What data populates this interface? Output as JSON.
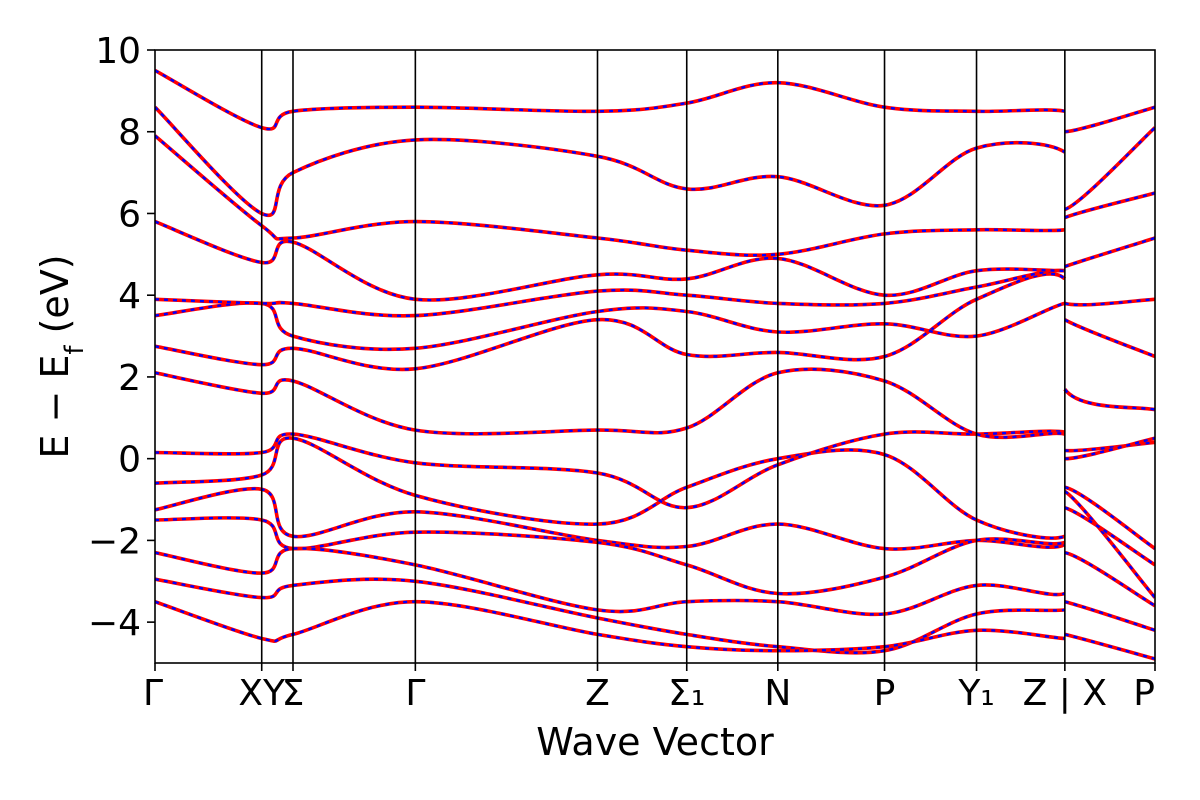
{
  "chart_data": {
    "type": "line",
    "title": "",
    "xlabel": "Wave Vector",
    "ylabel": "E − E",
    "ylabel_sub": "f",
    "ylabel_unit": " (eV)",
    "ylim": [
      -5,
      10
    ],
    "yticks": [
      "−4",
      "−2",
      "0",
      "2",
      "4",
      "6",
      "8",
      "10"
    ],
    "ytick_values": [
      -4,
      -2,
      0,
      2,
      4,
      6,
      8,
      10
    ],
    "kpath_labels": [
      "Γ",
      "XY",
      "Σ",
      "Γ",
      "Z",
      "Σ₁",
      "N",
      "P",
      "Y₁",
      "Z | X",
      "P"
    ],
    "kpath_positions": [
      0,
      1.16,
      1.5,
      2.83,
      4.81,
      5.78,
      6.77,
      7.93,
      8.93,
      9.89,
      10.87
    ],
    "series_styles": [
      {
        "color": "#ff0000",
        "style": "solid"
      },
      {
        "color": "#0000ff",
        "style": "dashed"
      }
    ],
    "bands": [
      {
        "kpoints": [
          0,
          1.16,
          1.5,
          2.83,
          4.81,
          5.78,
          6.77,
          7.93,
          8.93,
          9.89,
          9.89,
          10.87
        ],
        "energies": [
          -0.6,
          -0.4,
          0.5,
          -0.9,
          -1.6,
          -0.7,
          0.0,
          0.1,
          -1.5,
          -1.9,
          -0.7,
          -2.2
        ]
      },
      {
        "kpoints": [
          0,
          1.16,
          1.5,
          2.83,
          4.81,
          5.78,
          6.77,
          7.93,
          8.93,
          9.89,
          9.89,
          10.87
        ],
        "energies": [
          0.15,
          0.15,
          0.6,
          -0.1,
          -0.35,
          -1.2,
          -0.15,
          0.6,
          0.6,
          0.65,
          0.2,
          0.4
        ]
      },
      {
        "kpoints": [
          0,
          1.16,
          1.5,
          2.83,
          4.81,
          5.78,
          6.77,
          7.93,
          8.93,
          9.89,
          9.89,
          10.87
        ],
        "energies": [
          2.1,
          1.6,
          1.9,
          0.7,
          0.7,
          0.75,
          2.1,
          1.9,
          0.6,
          0.6,
          0.0,
          0.5
        ]
      },
      {
        "kpoints": [
          0,
          1.16,
          1.5,
          2.83,
          4.81,
          5.78,
          6.77,
          7.93,
          8.93,
          9.89,
          9.89,
          10.87
        ],
        "energies": [
          2.75,
          2.3,
          2.7,
          2.2,
          3.4,
          2.55,
          2.6,
          2.5,
          3.9,
          4.4,
          1.7,
          1.2
        ]
      },
      {
        "kpoints": [
          0,
          1.16,
          1.5,
          2.83,
          4.81,
          5.78,
          6.77,
          7.93,
          8.93,
          9.89,
          9.89,
          10.87
        ],
        "energies": [
          3.5,
          3.8,
          3.0,
          2.7,
          3.6,
          3.6,
          3.1,
          3.3,
          3.0,
          3.8,
          3.4,
          2.5
        ]
      },
      {
        "kpoints": [
          0,
          1.16,
          1.5,
          2.83,
          4.81,
          5.78,
          6.77,
          7.93,
          8.93,
          9.89,
          9.89,
          10.87
        ],
        "energies": [
          3.9,
          3.8,
          3.8,
          3.5,
          4.1,
          4.0,
          3.8,
          3.8,
          4.2,
          4.6,
          3.8,
          3.9
        ]
      },
      {
        "kpoints": [
          0,
          1.16,
          1.5,
          2.83,
          4.81,
          5.78,
          6.77,
          7.93,
          8.93,
          9.89,
          9.89,
          10.87
        ],
        "energies": [
          5.8,
          4.8,
          5.3,
          3.9,
          4.5,
          4.4,
          4.9,
          4.0,
          4.6,
          4.6,
          4.7,
          5.4
        ]
      },
      {
        "kpoints": [
          0,
          1.16,
          1.5,
          2.83,
          4.81,
          5.78,
          6.77,
          7.93,
          8.93,
          9.89,
          9.89,
          10.87
        ],
        "energies": [
          7.9,
          5.7,
          5.4,
          5.8,
          5.4,
          5.1,
          5.0,
          5.5,
          5.6,
          5.6,
          5.9,
          6.5
        ]
      },
      {
        "kpoints": [
          0,
          1.16,
          1.5,
          2.83,
          4.81,
          5.78,
          6.77,
          7.93,
          8.93,
          9.89,
          9.89,
          10.87
        ],
        "energies": [
          8.6,
          6.0,
          7.0,
          7.8,
          7.4,
          6.6,
          6.9,
          6.2,
          7.6,
          7.5,
          6.1,
          8.1
        ]
      },
      {
        "kpoints": [
          0,
          1.16,
          1.5,
          2.83,
          4.81,
          5.78,
          6.77,
          7.93,
          8.93,
          9.89,
          9.89,
          10.87
        ],
        "energies": [
          9.5,
          8.1,
          8.5,
          8.6,
          8.5,
          8.7,
          9.2,
          8.6,
          8.5,
          8.5,
          8.0,
          8.6
        ]
      },
      {
        "kpoints": [
          0,
          1.16,
          1.5,
          2.83,
          4.81,
          5.78,
          6.77,
          7.93,
          8.93,
          9.89,
          9.89,
          10.87
        ],
        "energies": [
          -1.25,
          -0.75,
          -1.9,
          -1.3,
          -2.0,
          -2.15,
          -1.6,
          -2.2,
          -2.0,
          -2.1,
          -0.8,
          -3.4
        ]
      },
      {
        "kpoints": [
          0,
          1.16,
          1.5,
          2.83,
          4.81,
          5.78,
          6.77,
          7.93,
          8.93,
          9.89,
          9.89,
          10.87
        ],
        "energies": [
          -1.5,
          -1.5,
          -2.2,
          -1.8,
          -2.05,
          -2.6,
          -3.3,
          -2.9,
          -2.0,
          -2.05,
          -1.2,
          -2.6
        ]
      },
      {
        "kpoints": [
          0,
          1.16,
          1.5,
          2.83,
          4.81,
          5.78,
          6.77,
          7.93,
          8.93,
          9.89,
          9.89,
          10.87
        ],
        "energies": [
          -2.3,
          -2.8,
          -2.2,
          -2.6,
          -3.7,
          -3.5,
          -3.5,
          -3.8,
          -3.1,
          -3.3,
          -2.3,
          -3.6
        ]
      },
      {
        "kpoints": [
          0,
          1.16,
          1.5,
          2.83,
          4.81,
          5.78,
          6.77,
          7.93,
          8.93,
          9.89,
          9.89,
          10.87
        ],
        "energies": [
          -2.95,
          -3.4,
          -3.1,
          -3.0,
          -3.9,
          -4.3,
          -4.6,
          -4.7,
          -3.8,
          -3.7,
          -3.5,
          -4.2
        ]
      },
      {
        "kpoints": [
          0,
          1.16,
          1.5,
          2.83,
          4.81,
          5.78,
          6.77,
          7.93,
          8.93,
          9.89,
          9.89,
          10.87
        ],
        "energies": [
          -3.5,
          -4.4,
          -4.3,
          -3.5,
          -4.3,
          -4.6,
          -4.7,
          -4.6,
          -4.2,
          -4.4,
          -4.3,
          -4.9
        ]
      }
    ]
  }
}
